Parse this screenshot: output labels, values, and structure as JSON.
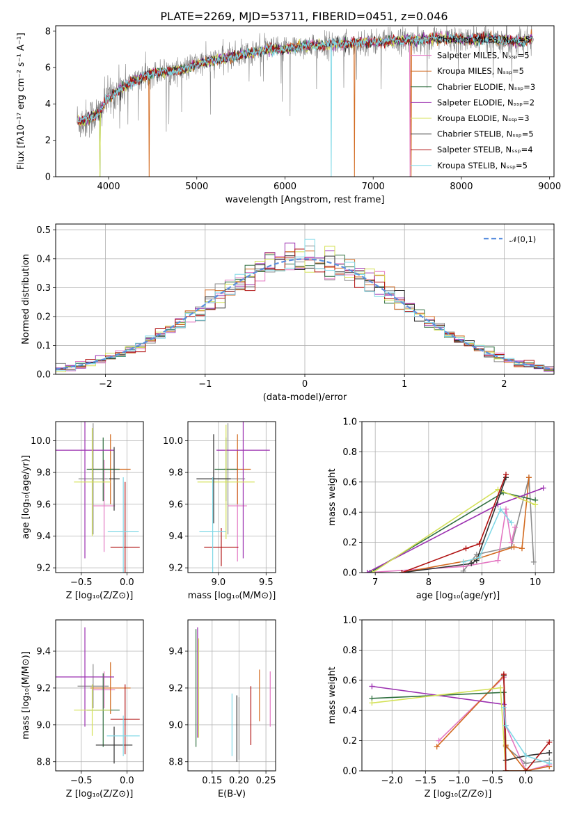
{
  "figure_title": "PLATE=2269, MJD=53711, FIBERID=0451, z=0.046",
  "colors": {
    "Chabrier MILES": "#8c8c8c",
    "Salpeter MILES": "#e377c2",
    "Kroupa MILES": "#d2691e",
    "Chabrier ELODIE": "#2f6f3f",
    "Salpeter ELODIE": "#9b30b0",
    "Kroupa ELODIE": "#d4e157",
    "Chabrier STELIB": "#303030",
    "Salpeter STELIB": "#b01010",
    "Kroupa STELIB": "#7fd8e6",
    "gauss": "#5b8fde"
  },
  "chart_data": [
    {
      "id": "spectrum",
      "type": "line",
      "title": "PLATE=2269, MJD=53711, FIBERID=0451, z=0.046",
      "xlabel": "wavelength [Angstrom, rest frame]",
      "ylabel": "Flux [fλ10⁻¹⁷ erg cm⁻² s⁻¹ A⁻¹]",
      "xlim": [
        3400,
        9050
      ],
      "ylim": [
        0,
        8.3
      ],
      "xticks": [
        4000,
        5000,
        6000,
        7000,
        8000,
        9000
      ],
      "yticks": [
        0,
        2,
        4,
        6,
        8
      ],
      "grid": false,
      "legend_placement": "right",
      "legend": [
        "Chabrier MILES, Nₛₛₚ=5",
        "Salpeter MILES, Nₛₛₚ=5",
        "Kroupa MILES, Nₛₛₚ=5",
        "Chabrier ELODIE, Nₛₛₚ=3",
        "Salpeter ELODIE, Nₛₛₚ=2",
        "Kroupa ELODIE, Nₛₛₚ=3",
        "Chabrier STELIB, Nₛₛₚ=5",
        "Salpeter STELIB, Nₛₛₚ=4",
        "Kroupa STELIB, Nₛₛₚ=5"
      ],
      "model_x": [
        3650,
        3700,
        3800,
        3900,
        3970,
        4050,
        4150,
        4300,
        4500,
        4700,
        4861,
        5000,
        5200,
        5400,
        5600,
        5800,
        6000,
        6200,
        6400,
        6563,
        6700,
        6900,
        7100,
        7300,
        7500,
        7700,
        7900,
        8100,
        8300,
        8500,
        8700,
        8800
      ],
      "model_y": [
        3.1,
        3.0,
        3.3,
        3.5,
        4.2,
        4.5,
        4.9,
        5.3,
        5.7,
        5.8,
        5.9,
        6.2,
        6.4,
        6.6,
        6.8,
        7.0,
        7.0,
        7.2,
        7.2,
        7.3,
        7.3,
        7.4,
        7.4,
        7.5,
        7.5,
        7.6,
        7.6,
        7.5,
        7.6,
        7.5,
        7.4,
        7.6
      ]
    },
    {
      "id": "residuals",
      "type": "line",
      "xlabel": "(data-model)/error",
      "ylabel": "Normed distribution",
      "xlim": [
        -2.5,
        2.5
      ],
      "ylim": [
        0,
        0.52
      ],
      "xticks": [
        -2,
        -1,
        0,
        1,
        2
      ],
      "yticks": [
        0.0,
        0.1,
        0.2,
        0.3,
        0.4,
        0.5
      ],
      "grid": true,
      "legend_placement": "top-right",
      "legend": [
        "𝒩(0,1)"
      ]
    },
    {
      "id": "age_vs_Z",
      "type": "scatter",
      "xlabel": "Z [log₁₀(Z/Z⊙)]",
      "ylabel": "age  [log₁₀(age/yr)]",
      "xlim": [
        -0.78,
        0.18
      ],
      "ylim": [
        9.17,
        10.12
      ],
      "xticks": [
        -0.5,
        0.0
      ],
      "yticks": [
        9.2,
        9.4,
        9.6,
        9.8,
        10.0
      ],
      "grid": true,
      "errorbars": [
        {
          "series": "Chabrier MILES",
          "x": -0.37,
          "xerr": 0.16,
          "y": 9.76,
          "yerr": 0.35
        },
        {
          "series": "Salpeter MILES",
          "x": -0.25,
          "xerr": 0.12,
          "y": 9.59,
          "yerr": 0.29
        },
        {
          "series": "Kroupa MILES",
          "x": -0.18,
          "xerr": 0.22,
          "y": 9.82,
          "yerr": 0.22
        },
        {
          "series": "Chabrier ELODIE",
          "x": -0.26,
          "xerr": 0.18,
          "y": 9.82,
          "yerr": 0.2
        },
        {
          "series": "Salpeter ELODIE",
          "x": -0.46,
          "xerr": 0.32,
          "y": 9.94,
          "yerr": 0.68
        },
        {
          "series": "Kroupa ELODIE",
          "x": -0.38,
          "xerr": 0.2,
          "y": 9.74,
          "yerr": 0.34
        },
        {
          "series": "Chabrier STELIB",
          "x": -0.14,
          "xerr": 0.06,
          "y": 9.76,
          "yerr": 0.2
        },
        {
          "series": "Salpeter STELIB",
          "x": -0.02,
          "xerr": 0.16,
          "y": 9.33,
          "yerr": 0.41
        },
        {
          "series": "Kroupa STELIB",
          "x": -0.04,
          "xerr": 0.17,
          "y": 9.43,
          "yerr": 0.34
        }
      ]
    },
    {
      "id": "age_vs_mass",
      "type": "scatter",
      "xlabel": "mass [log₁₀(M/M⊙)]",
      "ylabel": "",
      "xlim": [
        8.68,
        9.6
      ],
      "ylim": [
        9.17,
        10.12
      ],
      "xticks": [
        9.0,
        9.5
      ],
      "yticks": [
        9.2,
        9.4,
        9.6,
        9.8,
        10.0
      ],
      "grid": true,
      "errorbars": [
        {
          "series": "Chabrier MILES",
          "x": 9.1,
          "xerr": 0.18,
          "y": 9.76,
          "yerr": 0.35
        },
        {
          "series": "Salpeter MILES",
          "x": 9.2,
          "xerr": 0.1,
          "y": 9.59,
          "yerr": 0.35
        },
        {
          "series": "Kroupa MILES",
          "x": 9.2,
          "xerr": 0.14,
          "y": 9.82,
          "yerr": 0.22
        },
        {
          "series": "Chabrier ELODIE",
          "x": 9.08,
          "xerr": 0.12,
          "y": 9.82,
          "yerr": 0.2
        },
        {
          "series": "Salpeter ELODIE",
          "x": 9.26,
          "xerr": 0.28,
          "y": 9.94,
          "yerr": 0.68
        },
        {
          "series": "Kroupa ELODIE",
          "x": 9.08,
          "xerr": 0.3,
          "y": 9.74,
          "yerr": 0.36
        },
        {
          "series": "Chabrier STELIB",
          "x": 8.95,
          "xerr": 0.18,
          "y": 9.76,
          "yerr": 0.28
        },
        {
          "series": "Salpeter STELIB",
          "x": 9.03,
          "xerr": 0.18,
          "y": 9.33,
          "yerr": 0.12
        },
        {
          "series": "Kroupa STELIB",
          "x": 8.94,
          "xerr": 0.14,
          "y": 9.43,
          "yerr": 0.34
        }
      ]
    },
    {
      "id": "weight_vs_age",
      "type": "line",
      "xlabel": "age  [log₁₀(age/yr)]",
      "ylabel": "mass weight",
      "xlim": [
        6.75,
        10.35
      ],
      "ylim": [
        0,
        1.0
      ],
      "xticks": [
        7,
        8,
        9,
        10
      ],
      "yticks": [
        0.0,
        0.2,
        0.4,
        0.6,
        0.8,
        1.0
      ],
      "grid": true,
      "series": [
        {
          "series": "Chabrier MILES",
          "x": [
            8.65,
            8.9,
            9.55,
            9.88,
            9.97
          ],
          "y": [
            0.01,
            0.12,
            0.17,
            0.63,
            0.07
          ]
        },
        {
          "series": "Salpeter MILES",
          "x": [
            6.85,
            8.65,
            9.3,
            9.45,
            9.55,
            9.62
          ],
          "y": [
            0.0,
            0.04,
            0.08,
            0.42,
            0.2,
            0.3
          ]
        },
        {
          "series": "Kroupa MILES",
          "x": [
            7.5,
            8.9,
            9.6,
            9.75,
            9.88
          ],
          "y": [
            0.0,
            0.09,
            0.17,
            0.16,
            0.63
          ]
        },
        {
          "series": "Chabrier ELODIE",
          "x": [
            6.9,
            9.4,
            10.0
          ],
          "y": [
            0.0,
            0.53,
            0.48
          ]
        },
        {
          "series": "Salpeter ELODIE",
          "x": [
            6.85,
            9.3,
            10.15
          ],
          "y": [
            0.0,
            0.45,
            0.56
          ]
        },
        {
          "series": "Kroupa ELODIE",
          "x": [
            6.95,
            9.3,
            10.0
          ],
          "y": [
            0.0,
            0.55,
            0.45
          ]
        },
        {
          "series": "Chabrier STELIB",
          "x": [
            7.5,
            8.8,
            8.9,
            9.45
          ],
          "y": [
            0.0,
            0.06,
            0.08,
            0.63
          ]
        },
        {
          "series": "Salpeter STELIB",
          "x": [
            7.5,
            8.7,
            8.95,
            9.45
          ],
          "y": [
            0.0,
            0.16,
            0.19,
            0.65
          ]
        },
        {
          "series": "Kroupa STELIB",
          "x": [
            8.65,
            8.95,
            9.35,
            9.55
          ],
          "y": [
            0.07,
            0.1,
            0.42,
            0.33
          ]
        }
      ]
    },
    {
      "id": "mass_vs_Z",
      "type": "scatter",
      "xlabel": "Z [log₁₀(Z/Z⊙)]",
      "ylabel": "mass [log₁₀(M/M⊙)]",
      "xlim": [
        -0.78,
        0.18
      ],
      "ylim": [
        8.75,
        9.57
      ],
      "xticks": [
        -0.5,
        0.0
      ],
      "yticks": [
        8.8,
        9.0,
        9.2,
        9.4
      ],
      "grid": true,
      "errorbars": [
        {
          "series": "Chabrier MILES",
          "x": -0.37,
          "xerr": 0.17,
          "y": 9.21,
          "yerr": 0.12
        },
        {
          "series": "Salpeter MILES",
          "x": -0.25,
          "xerr": 0.12,
          "y": 9.19,
          "yerr": 0.1
        },
        {
          "series": "Kroupa MILES",
          "x": -0.18,
          "xerr": 0.22,
          "y": 9.2,
          "yerr": 0.14
        },
        {
          "series": "Chabrier ELODIE",
          "x": -0.26,
          "xerr": 0.18,
          "y": 9.08,
          "yerr": 0.2
        },
        {
          "series": "Salpeter ELODIE",
          "x": -0.46,
          "xerr": 0.32,
          "y": 9.26,
          "yerr": 0.27
        },
        {
          "series": "Kroupa ELODIE",
          "x": -0.38,
          "xerr": 0.2,
          "y": 9.08,
          "yerr": 0.14
        },
        {
          "series": "Chabrier STELIB",
          "x": -0.14,
          "xerr": 0.2,
          "y": 8.89,
          "yerr": 0.1
        },
        {
          "series": "Salpeter STELIB",
          "x": -0.02,
          "xerr": 0.16,
          "y": 9.03,
          "yerr": 0.19
        },
        {
          "series": "Kroupa STELIB",
          "x": -0.04,
          "xerr": 0.18,
          "y": 8.94,
          "yerr": 0.11
        }
      ]
    },
    {
      "id": "mass_vs_ebv",
      "type": "scatter",
      "xlabel": "E(B-V)",
      "ylabel": "",
      "xlim": [
        0.105,
        0.268
      ],
      "ylim": [
        8.75,
        9.57
      ],
      "xticks": [
        0.15,
        0.2,
        0.25
      ],
      "yticks": [
        8.8,
        9.0,
        9.2,
        9.4
      ],
      "grid": true,
      "errorbars": [
        {
          "series": "Chabrier MILES",
          "x": 0.2,
          "xerr": 0,
          "y": 8.98,
          "yerr": 0.17
        },
        {
          "series": "Salpeter MILES",
          "x": 0.258,
          "xerr": 0,
          "y": 9.14,
          "yerr": 0.15
        },
        {
          "series": "Kroupa MILES",
          "x": 0.238,
          "xerr": 0,
          "y": 9.16,
          "yerr": 0.14
        },
        {
          "series": "Chabrier ELODIE",
          "x": 0.12,
          "xerr": 0,
          "y": 9.2,
          "yerr": 0.32
        },
        {
          "series": "Salpeter ELODIE",
          "x": 0.123,
          "xerr": 0,
          "y": 9.23,
          "yerr": 0.3
        },
        {
          "series": "Kroupa ELODIE",
          "x": 0.125,
          "xerr": 0,
          "y": 9.2,
          "yerr": 0.27
        },
        {
          "series": "Chabrier STELIB",
          "x": 0.196,
          "xerr": 0,
          "y": 8.98,
          "yerr": 0.18
        },
        {
          "series": "Salpeter STELIB",
          "x": 0.222,
          "xerr": 0,
          "y": 9.05,
          "yerr": 0.16
        },
        {
          "series": "Kroupa STELIB",
          "x": 0.187,
          "xerr": 0,
          "y": 9.0,
          "yerr": 0.17
        }
      ]
    },
    {
      "id": "weight_vs_Z",
      "type": "line",
      "xlabel": "Z [log₁₀(Z/Z⊙)]",
      "ylabel": "mass weight",
      "xlim": [
        -2.45,
        0.42
      ],
      "ylim": [
        0,
        1.0
      ],
      "xticks": [
        -2.0,
        -1.5,
        -1.0,
        -0.5,
        0.0
      ],
      "yticks": [
        0.0,
        0.2,
        0.4,
        0.6,
        0.8,
        1.0
      ],
      "grid": true,
      "series": [
        {
          "series": "Chabrier MILES",
          "x": [
            -0.33,
            -0.3,
            0.0,
            0.35
          ],
          "y": [
            0.63,
            0.16,
            0.05,
            0.07
          ]
        },
        {
          "series": "Salpeter MILES",
          "x": [
            -1.3,
            -0.33,
            -0.3,
            0.0,
            0.35
          ],
          "y": [
            0.2,
            0.62,
            0.3,
            0.0,
            0.04
          ]
        },
        {
          "series": "Kroupa MILES",
          "x": [
            -1.33,
            -0.33,
            -0.3,
            0.0,
            0.35
          ],
          "y": [
            0.16,
            0.63,
            0.17,
            0.0,
            0.03
          ]
        },
        {
          "series": "Chabrier ELODIE",
          "x": [
            -2.3,
            -0.33,
            -0.3
          ],
          "y": [
            0.48,
            0.52,
            0.0
          ]
        },
        {
          "series": "Salpeter ELODIE",
          "x": [
            -2.3,
            -0.33,
            -0.3
          ],
          "y": [
            0.56,
            0.44,
            0.0
          ]
        },
        {
          "series": "Kroupa ELODIE",
          "x": [
            -2.3,
            -0.38,
            -0.3,
            0.0
          ],
          "y": [
            0.45,
            0.55,
            0.0,
            0.0
          ]
        },
        {
          "series": "Chabrier STELIB",
          "x": [
            -0.33,
            -0.3,
            0.0,
            0.35
          ],
          "y": [
            0.63,
            0.07,
            0.1,
            0.12
          ]
        },
        {
          "series": "Salpeter STELIB",
          "x": [
            -0.33,
            -0.3,
            0.0,
            0.35
          ],
          "y": [
            0.64,
            0.0,
            0.0,
            0.19
          ]
        },
        {
          "series": "Kroupa STELIB",
          "x": [
            -0.33,
            -0.3,
            0.0,
            0.35
          ],
          "y": [
            0.42,
            0.3,
            0.1,
            0.05
          ]
        }
      ]
    }
  ]
}
